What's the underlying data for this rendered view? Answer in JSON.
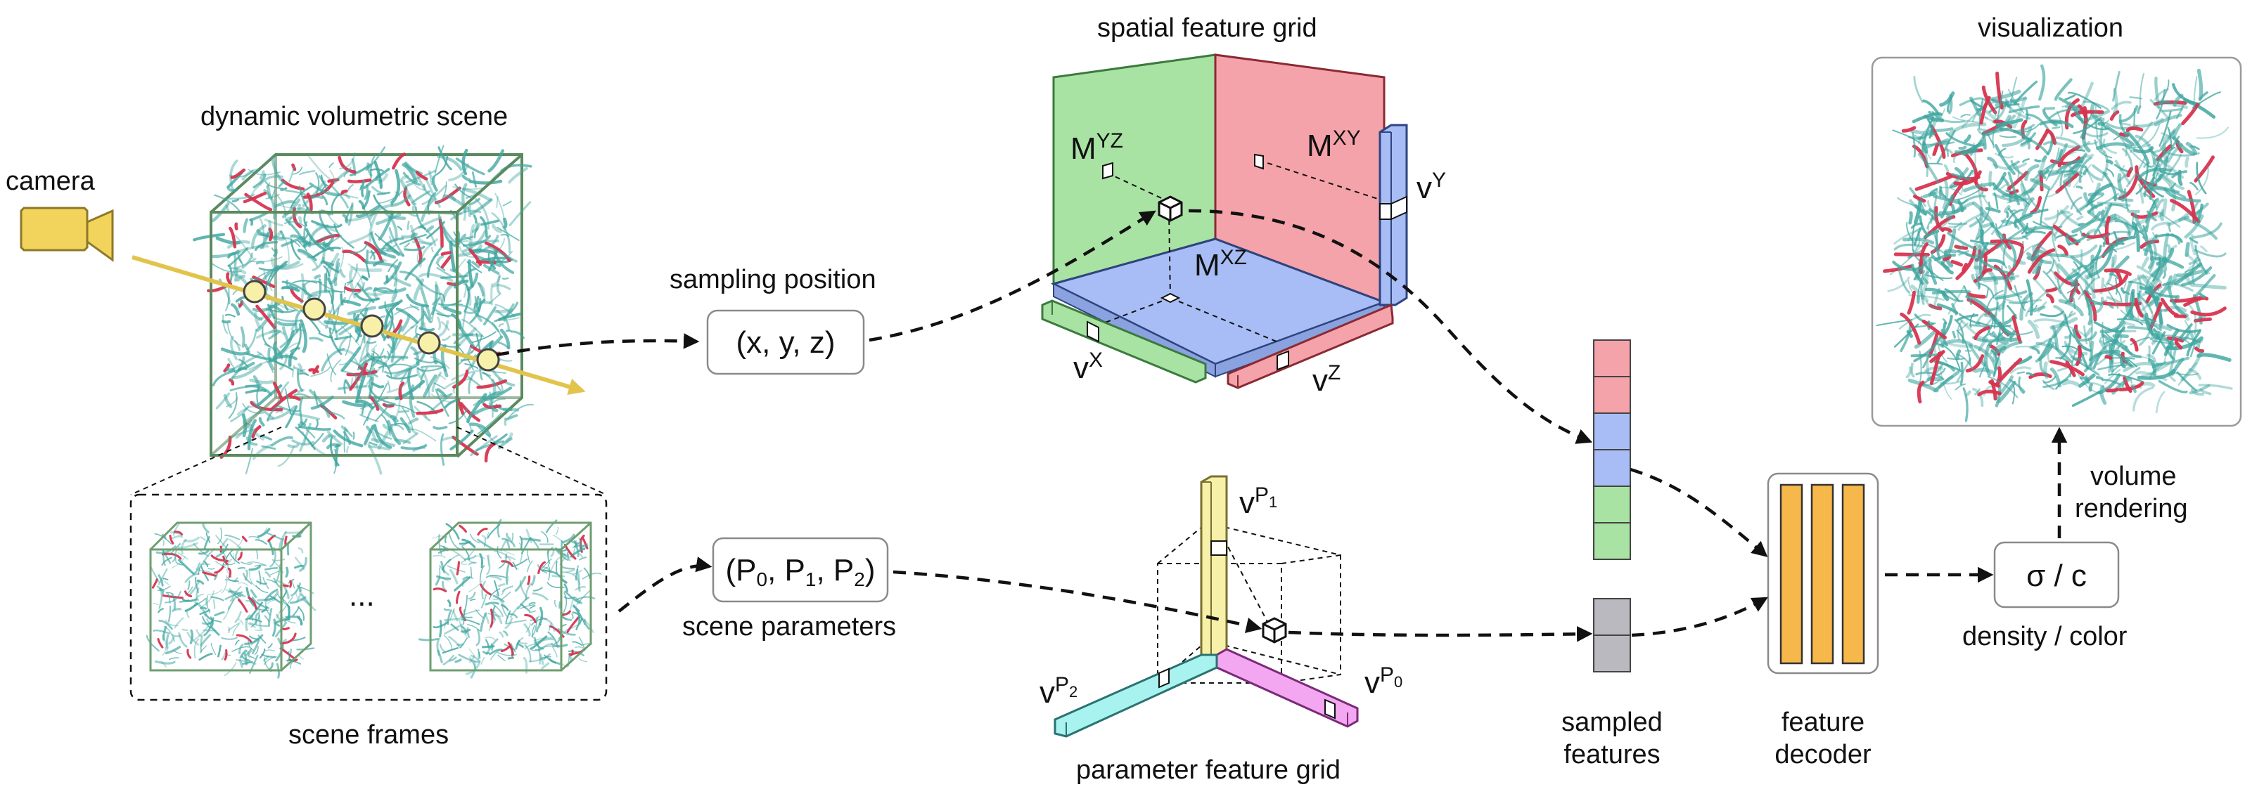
{
  "labels": {
    "camera": "camera",
    "scene_title": "dynamic volumetric scene",
    "scene_frames": "scene frames",
    "ellipsis": "...",
    "sampling_position": "sampling position",
    "xyz": "(x, y, z)",
    "scene_parameters": "scene parameters",
    "spatial_grid_title": "spatial feature grid",
    "param_grid_title": "parameter feature grid",
    "sampled_features_line1": "sampled",
    "sampled_features_line2": "features",
    "decoder_line1": "feature",
    "decoder_line2": "decoder",
    "sigma_c": "σ / c",
    "density_color": "density / color",
    "volume_rendering_line1": "volume",
    "volume_rendering_line2": "rendering",
    "visualization": "visualization"
  },
  "params": {
    "p0": "P",
    "p0_sub": "0",
    "p1": "P",
    "p1_sub": "1",
    "p2": "P",
    "p2_sub": "2"
  },
  "spatial_grid": {
    "m_yz": "M",
    "m_yz_sup": "YZ",
    "m_xy": "M",
    "m_xy_sup": "XY",
    "m_xz": "M",
    "m_xz_sup": "XZ",
    "v_x": "v",
    "v_x_sup": "X",
    "v_y": "v",
    "v_y_sup": "Y",
    "v_z": "v",
    "v_z_sup": "Z"
  },
  "param_grid": {
    "v_p0": "v",
    "v_p0_sup": "P",
    "v_p0_sub": "0",
    "v_p1": "v",
    "v_p1_sup": "P",
    "v_p1_sub": "1",
    "v_p2": "v",
    "v_p2_sup": "P",
    "v_p2_sub": "2"
  },
  "colors": {
    "camera": "#f2d35b",
    "ray": "#e2c44c",
    "plane_yz": "#a9e3a3",
    "plane_xy": "#f5a3aa",
    "plane_xz": "#a8bdf5",
    "vec_p0": "#f3a7f0",
    "vec_p1": "#f7f0a8",
    "vec_p2": "#a8f2ef",
    "decoder": "#f7b84b",
    "feat_gray": "#b9b9bf",
    "volume_teal": "#3fa6a0",
    "volume_red": "#d8344f"
  }
}
